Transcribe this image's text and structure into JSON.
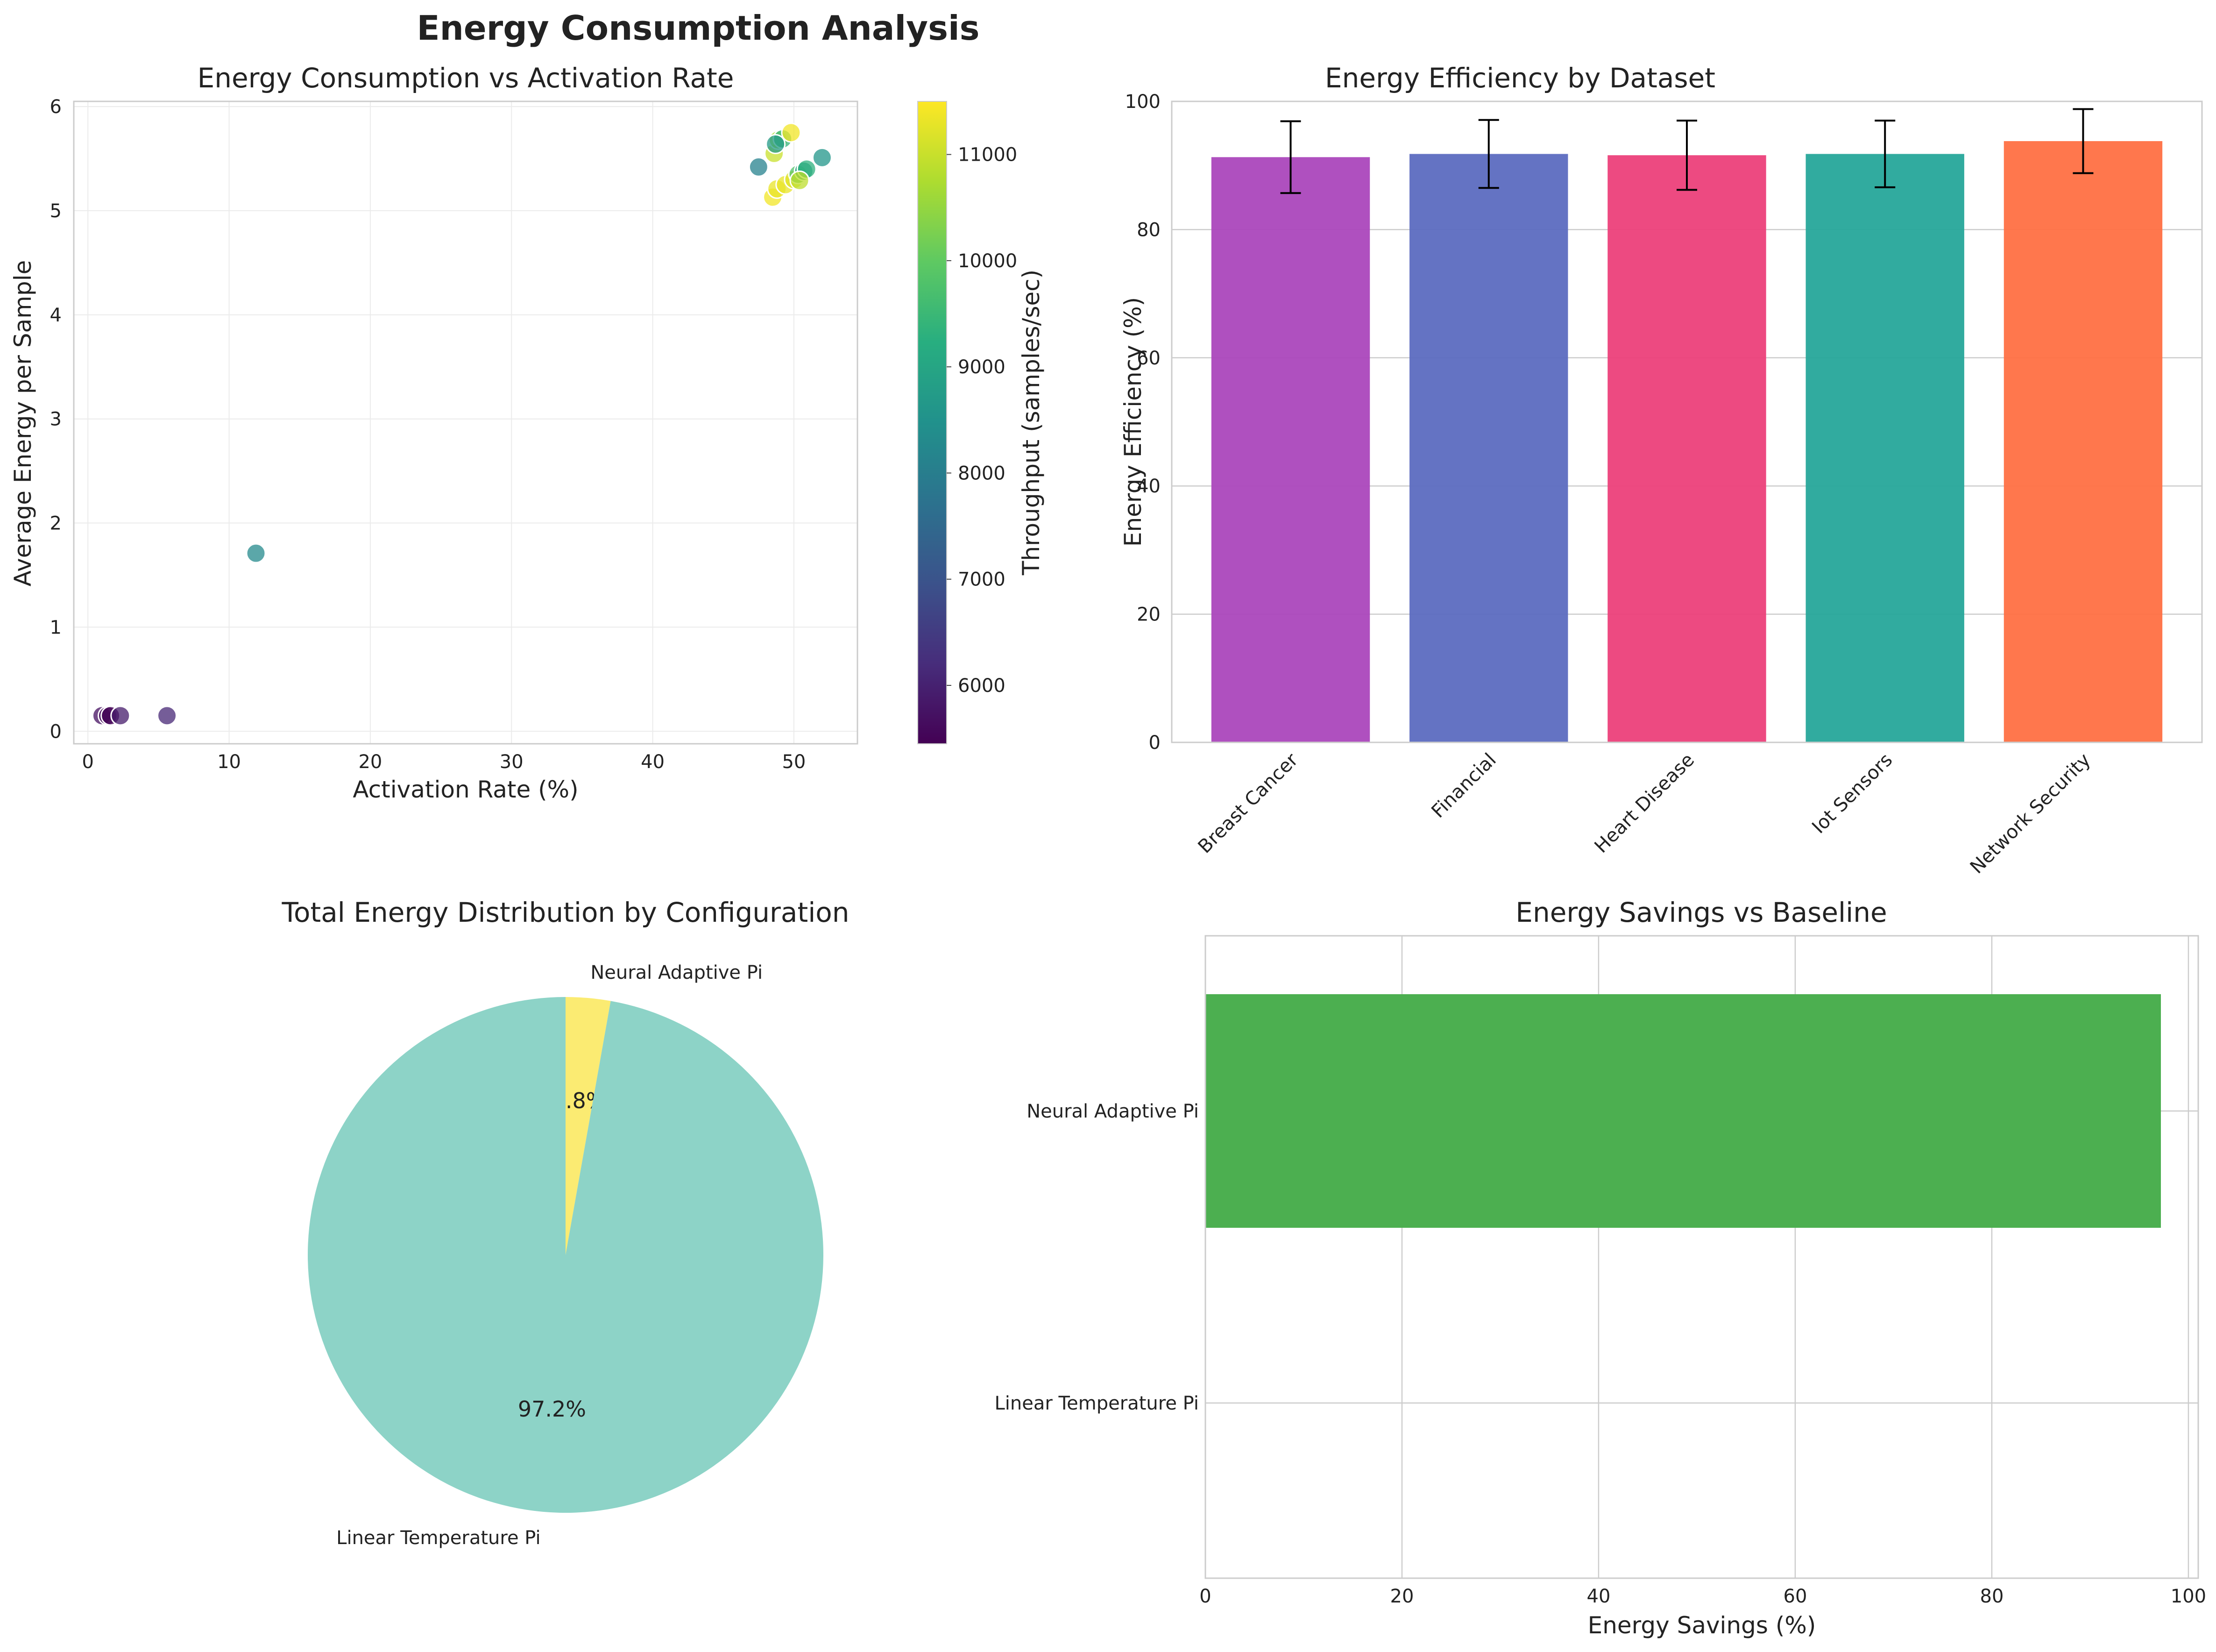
{
  "figure": {
    "title": "Energy Consumption Analysis"
  },
  "chart_data": [
    {
      "type": "scatter",
      "title": "Energy Consumption vs Activation Rate",
      "xlabel": "Activation Rate (%)",
      "ylabel": "Average Energy per Sample",
      "xlim": [
        -1,
        54.5
      ],
      "ylim": [
        -0.12,
        6.05
      ],
      "xticks": [
        0,
        10,
        20,
        30,
        40,
        50
      ],
      "yticks": [
        0,
        1,
        2,
        3,
        4,
        5,
        6
      ],
      "grid": true,
      "colorbar": {
        "label": "Throughput (samples/sec)",
        "colormap": "viridis",
        "range": [
          5450,
          11500
        ],
        "ticks": [
          6000,
          7000,
          8000,
          9000,
          10000,
          11000
        ]
      },
      "points": [
        {
          "x": 1.0,
          "y": 0.15,
          "throughput": 5700
        },
        {
          "x": 1.4,
          "y": 0.15,
          "throughput": 5550
        },
        {
          "x": 1.6,
          "y": 0.15,
          "throughput": 5500
        },
        {
          "x": 2.3,
          "y": 0.15,
          "throughput": 5900
        },
        {
          "x": 5.6,
          "y": 0.15,
          "throughput": 6100
        },
        {
          "x": 11.9,
          "y": 1.71,
          "throughput": 8300
        },
        {
          "x": 47.5,
          "y": 5.42,
          "throughput": 8100
        },
        {
          "x": 48.6,
          "y": 5.55,
          "throughput": 11000
        },
        {
          "x": 48.9,
          "y": 5.68,
          "throughput": 10700
        },
        {
          "x": 49.2,
          "y": 5.69,
          "throughput": 9400
        },
        {
          "x": 49.8,
          "y": 5.75,
          "throughput": 11400
        },
        {
          "x": 48.7,
          "y": 5.64,
          "throughput": 8700
        },
        {
          "x": 48.5,
          "y": 5.13,
          "throughput": 11400
        },
        {
          "x": 48.8,
          "y": 5.21,
          "throughput": 11300
        },
        {
          "x": 49.4,
          "y": 5.25,
          "throughput": 11300
        },
        {
          "x": 50.0,
          "y": 5.3,
          "throughput": 11200
        },
        {
          "x": 50.3,
          "y": 5.35,
          "throughput": 9800
        },
        {
          "x": 50.7,
          "y": 5.38,
          "throughput": 8900
        },
        {
          "x": 50.9,
          "y": 5.4,
          "throughput": 9300
        },
        {
          "x": 50.4,
          "y": 5.29,
          "throughput": 10900
        },
        {
          "x": 52.0,
          "y": 5.51,
          "throughput": 8600
        }
      ]
    },
    {
      "type": "bar",
      "title": "Energy Efficiency by Dataset",
      "xlabel": "",
      "ylabel": "Energy Efficiency (%)",
      "ylim": [
        0,
        100
      ],
      "yticks": [
        0,
        20,
        40,
        60,
        80,
        100
      ],
      "grid": true,
      "categories": [
        "Breast Cancer",
        "Financial",
        "Heart Disease",
        "Iot Sensors",
        "Network Security"
      ],
      "values": [
        91.3,
        91.8,
        91.6,
        91.8,
        93.8
      ],
      "errors": [
        5.6,
        5.3,
        5.4,
        5.2,
        5.0
      ],
      "colors": [
        "#ab47bc",
        "#5c6bc0",
        "#ec407a",
        "#26a69a",
        "#ff7043"
      ]
    },
    {
      "type": "pie",
      "title": "Total Energy Distribution by Configuration",
      "labels": [
        "Neural Adaptive Pi",
        "Linear Temperature Pi"
      ],
      "values": [
        2.8,
        97.2
      ],
      "autopct": [
        "2.8%",
        "97.2%"
      ],
      "colors": [
        "#fbeb72",
        "#8dd3c7"
      ]
    },
    {
      "type": "bar",
      "orientation": "horizontal",
      "title": "Energy Savings vs Baseline",
      "xlabel": "Energy Savings (%)",
      "ylabel": "",
      "xlim": [
        0,
        101
      ],
      "xticks": [
        0,
        20,
        40,
        60,
        80,
        100
      ],
      "grid": true,
      "categories": [
        "Linear Temperature Pi",
        "Neural Adaptive Pi"
      ],
      "values": [
        0,
        97.2
      ],
      "colors": [
        "#4caf50",
        "#4caf50"
      ]
    }
  ]
}
